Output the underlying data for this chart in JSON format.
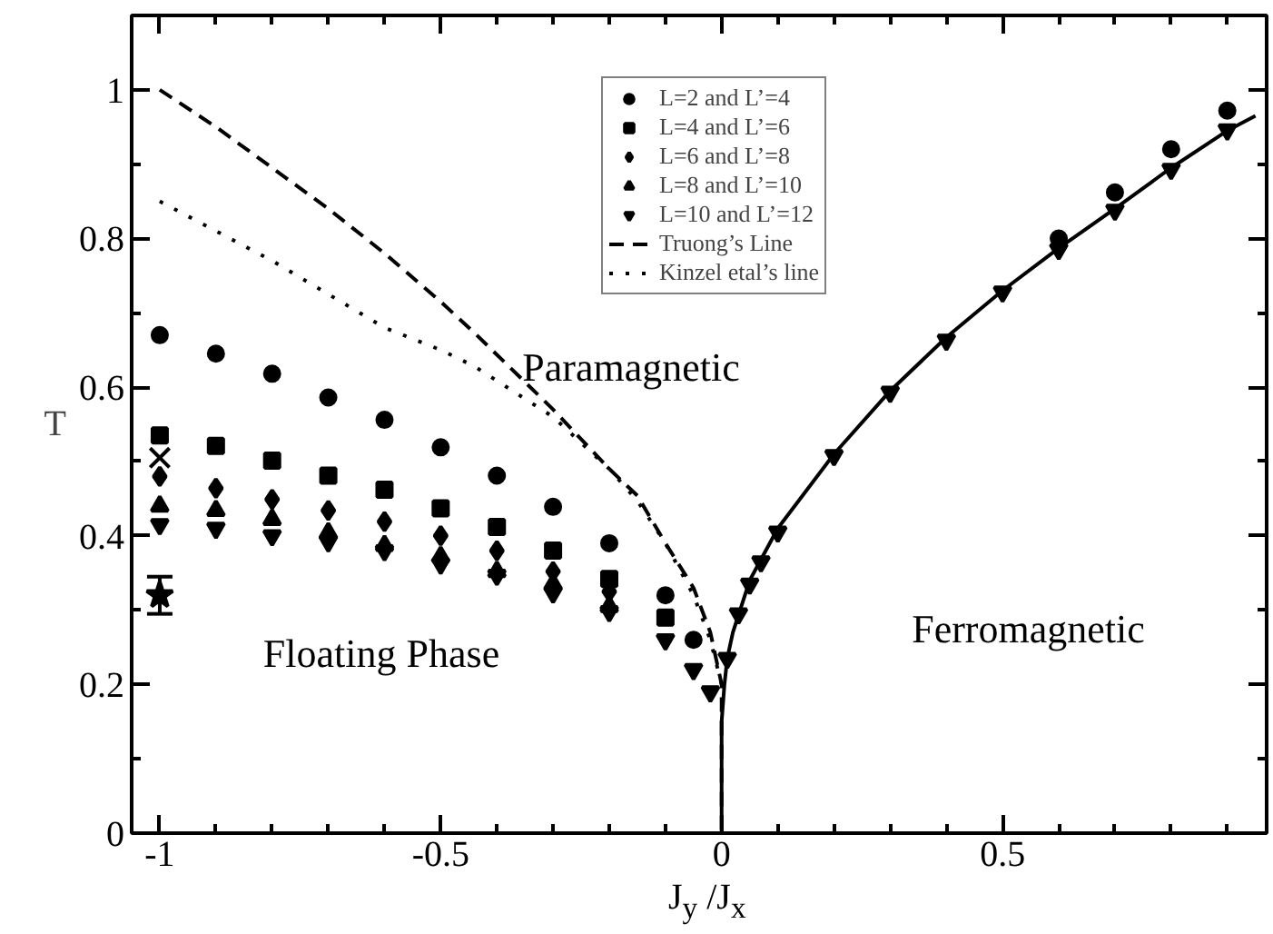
{
  "chart_data": {
    "type": "scatter",
    "xlabel": "J$_{y}$ /J$_{x}$",
    "ylabel": "T",
    "xlim": [
      -1.05,
      0.97
    ],
    "ylim": [
      0,
      1.1
    ],
    "xticks": [
      {
        "value": -1,
        "label": "-1"
      },
      {
        "value": -0.9,
        "label": null
      },
      {
        "value": -0.8,
        "label": null
      },
      {
        "value": -0.7,
        "label": null
      },
      {
        "value": -0.6,
        "label": null
      },
      {
        "value": -0.5,
        "label": "-0.5"
      },
      {
        "value": -0.4,
        "label": null
      },
      {
        "value": -0.3,
        "label": null
      },
      {
        "value": -0.2,
        "label": null
      },
      {
        "value": -0.1,
        "label": null
      },
      0,
      {
        "value": 0.1,
        "label": null
      },
      {
        "value": 0.2,
        "label": null
      },
      {
        "value": 0.3,
        "label": null
      },
      {
        "value": 0.4,
        "label": null
      },
      0.5,
      {
        "value": 0.6,
        "label": null
      },
      {
        "value": 0.7,
        "label": null
      },
      {
        "value": 0.8,
        "label": null
      },
      {
        "value": 0.9,
        "label": null
      }
    ],
    "yticks": [
      0,
      {
        "value": 0.1,
        "label": null
      },
      0.2,
      {
        "value": 0.3,
        "label": null
      },
      0.4,
      {
        "value": 0.5,
        "label": null
      },
      0.6,
      {
        "value": 0.7,
        "label": null
      },
      0.8,
      {
        "value": 0.9,
        "label": null
      },
      1
    ],
    "legend": "top right",
    "annotations": [
      "Paramagnetic",
      "Ferromagnetic",
      "Floating Phase"
    ],
    "series": [
      {
        "name": "L=2 and L’=4",
        "marker": "circle",
        "color": "#000000",
        "x": [
          -1,
          -0.9,
          -0.8,
          -0.7,
          -0.6,
          -0.5,
          -0.4,
          -0.3,
          -0.2,
          -0.1,
          -0.05,
          0.6,
          0.7,
          0.8,
          0.9
        ],
        "values": [
          0.67,
          0.645,
          0.618,
          0.586,
          0.556,
          0.519,
          0.481,
          0.439,
          0.39,
          0.32,
          0.26,
          0.8,
          0.862,
          0.92,
          0.972
        ]
      },
      {
        "name": "L=4 and L’=6",
        "marker": "square",
        "color": "#000000",
        "x": [
          -1,
          -0.9,
          -0.8,
          -0.7,
          -0.6,
          -0.5,
          -0.4,
          -0.3,
          -0.2,
          -0.1
        ],
        "values": [
          0.535,
          0.521,
          0.501,
          0.481,
          0.462,
          0.437,
          0.412,
          0.38,
          0.342,
          0.29
        ]
      },
      {
        "name": "L=6 and L’=8",
        "marker": "diamond",
        "color": "#000000",
        "x": [
          -1,
          -0.9,
          -0.8,
          -0.7,
          -0.6,
          -0.5,
          -0.4,
          -0.3,
          -0.2
        ],
        "values": [
          0.48,
          0.464,
          0.449,
          0.434,
          0.419,
          0.4,
          0.38,
          0.352,
          0.325
        ]
      },
      {
        "name": "L=8 and L’=10",
        "marker": "triangle",
        "color": "#000000",
        "x": [
          -1,
          -0.9,
          -0.8,
          -0.7,
          -0.6,
          -0.5,
          -0.4,
          -0.3,
          -0.2
        ],
        "values": [
          0.44,
          0.434,
          0.422,
          0.404,
          0.387,
          0.372,
          0.352,
          0.335,
          0.305
        ]
      },
      {
        "name": "L=10 and L’=12",
        "color": "#000000",
        "x": [
          -1,
          -0.9,
          -0.8,
          -0.7,
          -0.6,
          -0.5,
          -0.4,
          -0.3,
          -0.2,
          -0.1,
          -0.05,
          -0.02,
          0.01,
          0.03,
          0.05,
          0.07,
          0.1,
          0.2,
          0.3,
          0.4,
          0.5,
          0.6,
          0.7,
          0.8,
          0.9
        ],
        "values": [
          0.415,
          0.41,
          0.4,
          0.392,
          0.38,
          0.362,
          0.347,
          0.323,
          0.298,
          0.26,
          0.22,
          0.19,
          0.235,
          0.295,
          0.335,
          0.365,
          0.405,
          0.508,
          0.593,
          0.663,
          0.728,
          0.785,
          0.838,
          0.893,
          0.946
        ]
      },
      {
        "name": "Truong’s Line",
        "type": "line",
        "line_style": "dashed",
        "marker": "none",
        "color": "#000000",
        "x": [
          -1,
          -0.9,
          -0.8,
          -0.7,
          -0.6,
          -0.5,
          -0.44,
          -0.3,
          -0.2,
          -0.15,
          -0.1,
          -0.05,
          -0.02,
          0,
          0
        ],
        "values": [
          1.0,
          0.95,
          0.895,
          0.84,
          0.78,
          0.715,
          0.673,
          0.57,
          0.49,
          0.454,
          0.39,
          0.33,
          0.27,
          0.2,
          0
        ]
      },
      {
        "name": "Kinzel etal’s line",
        "type": "line",
        "line_style": "dotted",
        "marker": "none",
        "color": "#000000",
        "x": [
          -1,
          -0.9,
          -0.8,
          -0.7,
          -0.6,
          -0.5,
          -0.44,
          -0.3,
          -0.2,
          -0.15,
          -0.1,
          -0.05,
          -0.02,
          0
        ],
        "values": [
          0.85,
          0.81,
          0.77,
          0.725,
          0.68,
          0.65,
          0.628,
          0.56,
          0.49,
          0.447,
          0.39,
          0.32,
          0.26,
          0.2
        ]
      },
      {
        "type": "line",
        "line_style": "solid",
        "marker": "none",
        "color": "#000000",
        "x": [
          0,
          0,
          0.005,
          0.01,
          0.02,
          0.05,
          0.1,
          0.2,
          0.3,
          0.4,
          0.5,
          0.6,
          0.7,
          0.8,
          0.9,
          0.95
        ],
        "values": [
          0,
          0.15,
          0.2,
          0.235,
          0.27,
          0.34,
          0.41,
          0.51,
          0.595,
          0.667,
          0.73,
          0.787,
          0.84,
          0.895,
          0.945,
          0.965
        ]
      },
      {
        "marker": "star",
        "color": "#000000",
        "x": [
          -1
        ],
        "values": [
          0.32
        ],
        "errors": [
          0.025
        ]
      },
      {
        "marker": "cross",
        "color": "#000000",
        "x": [
          -1
        ],
        "values": [
          0.505
        ]
      }
    ]
  }
}
